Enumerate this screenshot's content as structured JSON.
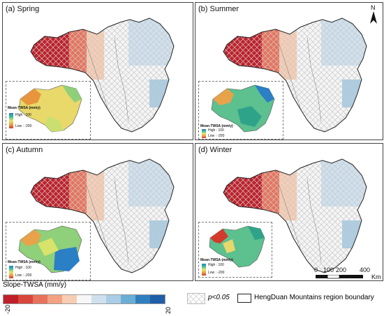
{
  "panels": [
    {
      "title": "(a) Spring"
    },
    {
      "title": "(b) Summer"
    },
    {
      "title": "(c) Autumn"
    },
    {
      "title": "(d) Winter"
    }
  ],
  "inset_legend": {
    "title": "Mean-TWSA (mm/y)",
    "high": "High : 100",
    "low": "Low : -200"
  },
  "north_arrow": "N",
  "scale_bar": {
    "ticks": [
      "0",
      "100",
      "200",
      "400"
    ],
    "unit": "Km"
  },
  "colorbar": {
    "title": "Slope-TWSA (mm/y)",
    "min": "-20",
    "max": "20",
    "colors": [
      "#c0202a",
      "#d9463b",
      "#e8735c",
      "#f2a283",
      "#f7cdb3",
      "#f7f7f7",
      "#cfe1ef",
      "#a9cde4",
      "#6aaed6",
      "#2f7fbf",
      "#1f5ea8"
    ]
  },
  "significance": {
    "label": "p<0.05"
  },
  "boundary": {
    "label": "HengDuan Mountains region boundary"
  }
}
